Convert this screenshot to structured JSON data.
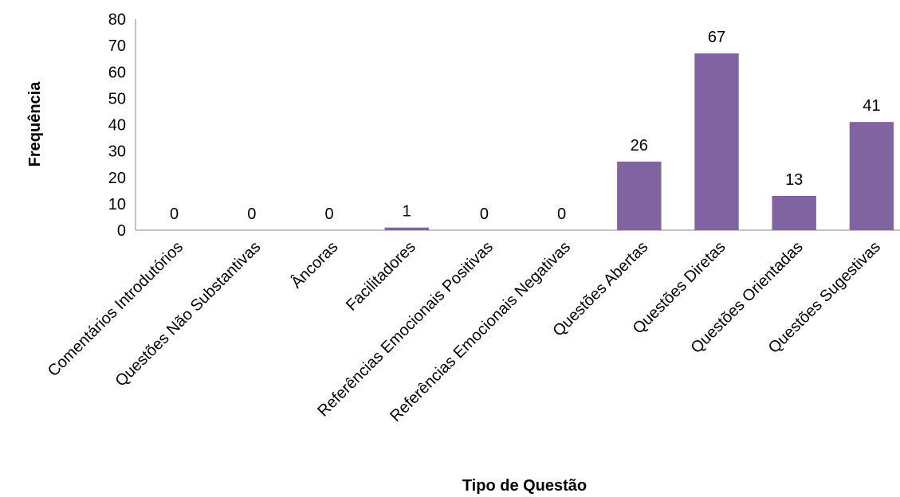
{
  "chart_data": {
    "type": "bar",
    "title": "",
    "xlabel": "Tipo de Questão",
    "ylabel": "Frequência",
    "categories": [
      "Comentários Introdutórios",
      "Questões Não Substantivas",
      "Âncoras",
      "Facilitadores",
      "Referências Emocionais Positivas",
      "Referências Emocionais Negativas",
      "Questões Abertas",
      "Questões Diretas",
      "Questões Orientadas",
      "Questões Sugestivas"
    ],
    "values": [
      0,
      0,
      0,
      1,
      0,
      0,
      26,
      67,
      13,
      41
    ],
    "ylim": [
      0,
      80
    ],
    "yticks": [
      0,
      10,
      20,
      30,
      40,
      50,
      60,
      70,
      80
    ],
    "grid": false,
    "legend": "none",
    "bar_color": "#8064a2"
  }
}
